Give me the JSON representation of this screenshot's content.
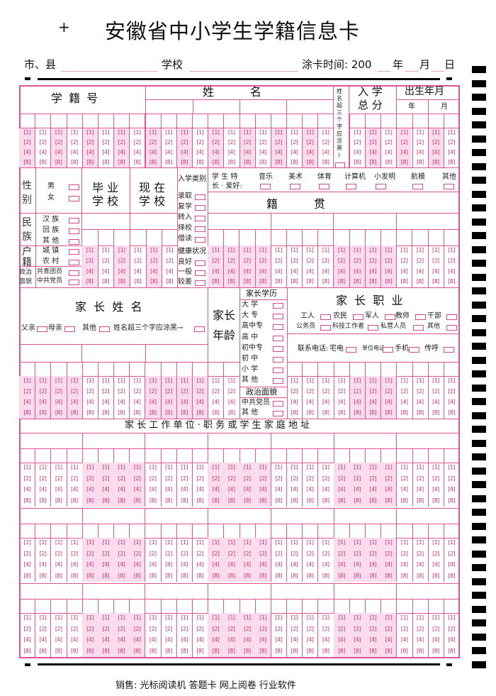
{
  "title": "安徽省中小学生学籍信息卡",
  "crosshair": "+",
  "info_line": {
    "city_label": "市、县",
    "school_label": "学校",
    "time_label": "涂卡时间: 200",
    "year": "年",
    "month": "月",
    "day": "日"
  },
  "bubble_values": [
    "1",
    "2",
    "4",
    "8"
  ],
  "section1": {
    "student_id": "学 籍 号",
    "name": "姓          名",
    "name_note": "姓名超三个字应涂黑↓",
    "entrance_score_1": "入 学",
    "entrance_score_2": "总 分",
    "birth": "出生年月",
    "birth_year": "年",
    "birth_month": "月"
  },
  "section2": {
    "gender": "性\n别",
    "male": "男",
    "female": "女",
    "ethnicity": "民\n族",
    "ethnic_options": [
      "汉 族",
      "回 族",
      "其 他"
    ],
    "household": "户\n籍",
    "household_options": [
      "城 镇",
      "农 村"
    ],
    "political": "政治\n面貌",
    "political_options": [
      "共青团员",
      "中共党员"
    ],
    "grad_school": "毕 业\n学 校",
    "current_school": "现 在\n学 校",
    "admission_type": "入学类别",
    "admission_options": [
      "录取",
      "复学",
      "转入",
      "择校",
      "借读"
    ],
    "health": "健康状况",
    "health_options": [
      "良好",
      "一般",
      "较差"
    ],
    "hobby_label": "学 生 特\n长 · 爱好:",
    "hobbies": [
      "音乐",
      "美术",
      "体育",
      "计算机",
      "小发明",
      "航模",
      "其他"
    ],
    "native_place": "籍          贯"
  },
  "section3": {
    "parent_name": "家  长  姓  名",
    "parent_relations": [
      "父亲",
      "母亲",
      "其他",
      "姓名超三个字应涂黑→"
    ],
    "parent_age": "家长\n\n年龄",
    "education_header": "家长学历",
    "education_options": [
      "大  学",
      "大  专",
      "高中专",
      "高  中",
      "初中专",
      "初  中",
      "小  学",
      "其  他"
    ],
    "political_header": "政治面貌",
    "political_options": [
      "中共党员",
      "其  他"
    ],
    "occupation": "家  长  职  业",
    "occupation_row1": [
      "工人",
      "农民",
      "军人",
      "教师",
      "干部"
    ],
    "occupation_row2": [
      "公务员",
      "科技工作者",
      "私营人员",
      "其他"
    ],
    "phone_label": "联系电话:",
    "phone_options": [
      "宅电",
      "单位电话",
      "手机",
      "传呼"
    ]
  },
  "section4": {
    "title": "家 长 工 作 单 位 · 职 务 或 学 生 家 庭 地 址"
  },
  "footer": "销售: 光标阅读机 答题卡 网上阅卷 行业软件",
  "colors": {
    "line": "#e0559a",
    "shade": "#fbdcec",
    "bubble_text": "#c8307a"
  }
}
